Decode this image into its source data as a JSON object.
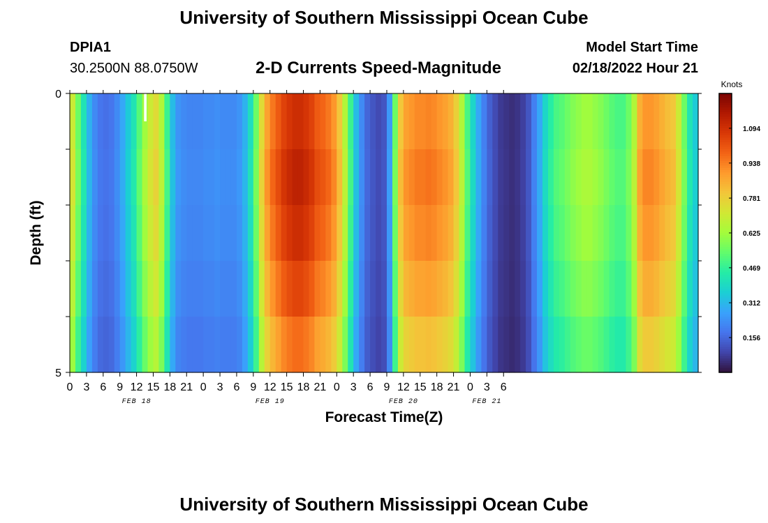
{
  "header": {
    "title": "University of Southern Mississippi Ocean Cube",
    "station_id": "DPIA1",
    "coordinates": "30.2500N  88.0750W",
    "subtitle": "2-D Currents Speed-Magnitude",
    "model_start_label": "Model Start Time",
    "model_start_value": "02/18/2022 Hour 21"
  },
  "footer": {
    "title": "University of Southern Mississippi Ocean Cube"
  },
  "chart_data": {
    "type": "heatmap",
    "title": "2-D Currents Speed-Magnitude",
    "xlabel": "Forecast Time(Z)",
    "ylabel": "Depth (ft)",
    "y_ticks": [
      "0",
      "5"
    ],
    "ylim": [
      0,
      5
    ],
    "x_tick_labels": [
      "0",
      "3",
      "6",
      "9",
      "12",
      "15",
      "18",
      "21",
      "0",
      "3",
      "6",
      "9",
      "12",
      "15",
      "18",
      "21",
      "0",
      "3",
      "6",
      "9",
      "12",
      "15",
      "18",
      "21",
      "0",
      "3",
      "6"
    ],
    "date_labels": [
      {
        "label": "FEB 18",
        "tick_index": 4
      },
      {
        "label": "FEB 19",
        "tick_index": 12
      },
      {
        "label": "FEB 20",
        "tick_index": 20
      },
      {
        "label": "FEB 21",
        "tick_index": 25
      }
    ],
    "colorbar": {
      "unit": "Knots",
      "ticks": [
        "1.094",
        "0.938",
        "0.781",
        "0.625",
        "0.469",
        "0.312",
        "0.156"
      ],
      "tick_values": [
        1.094,
        0.938,
        0.781,
        0.625,
        0.469,
        0.312,
        0.156
      ],
      "range": [
        0.0,
        1.25
      ],
      "colormap": [
        "#30123b",
        "#4145ab",
        "#4675ed",
        "#39a2fc",
        "#1bcfd4",
        "#24eca6",
        "#61fc6c",
        "#a4fc3b",
        "#d1e834",
        "#f3c63a",
        "#fe9b2d",
        "#f36315",
        "#d93806",
        "#b11901",
        "#7a0403"
      ]
    },
    "time_step_hours": 1,
    "depth_rows": 5,
    "series_profile_knots": [
      0.7,
      0.55,
      0.42,
      0.3,
      0.22,
      0.18,
      0.17,
      0.18,
      0.22,
      0.28,
      0.35,
      0.42,
      0.52,
      0.62,
      0.7,
      0.75,
      0.65,
      0.48,
      0.32,
      0.24,
      0.22,
      0.21,
      0.21,
      0.21,
      0.22,
      0.22,
      0.23,
      0.22,
      0.22,
      0.22,
      0.24,
      0.3,
      0.4,
      0.55,
      0.75,
      0.88,
      0.95,
      1.0,
      1.05,
      1.08,
      1.1,
      1.1,
      1.08,
      1.05,
      1.0,
      0.98,
      0.95,
      0.9,
      0.8,
      0.65,
      0.48,
      0.32,
      0.22,
      0.15,
      0.12,
      0.1,
      0.12,
      0.25,
      0.55,
      0.8,
      0.88,
      0.9,
      0.92,
      0.92,
      0.93,
      0.92,
      0.9,
      0.88,
      0.85,
      0.78,
      0.65,
      0.5,
      0.38,
      0.28,
      0.2,
      0.14,
      0.1,
      0.07,
      0.06,
      0.05,
      0.06,
      0.08,
      0.12,
      0.2,
      0.28,
      0.38,
      0.45,
      0.5,
      0.52,
      0.55,
      0.58,
      0.6,
      0.62,
      0.62,
      0.6,
      0.58,
      0.55,
      0.52,
      0.5,
      0.5,
      0.55,
      0.65,
      0.85,
      0.9,
      0.9,
      0.88,
      0.85,
      0.82,
      0.8,
      0.7,
      0.55,
      0.42,
      0.35
    ],
    "depth_factor": [
      1.0,
      1.03,
      1.0,
      0.95,
      0.88
    ],
    "missing_cell": {
      "hour_index": 13,
      "depth_row": 0
    }
  }
}
